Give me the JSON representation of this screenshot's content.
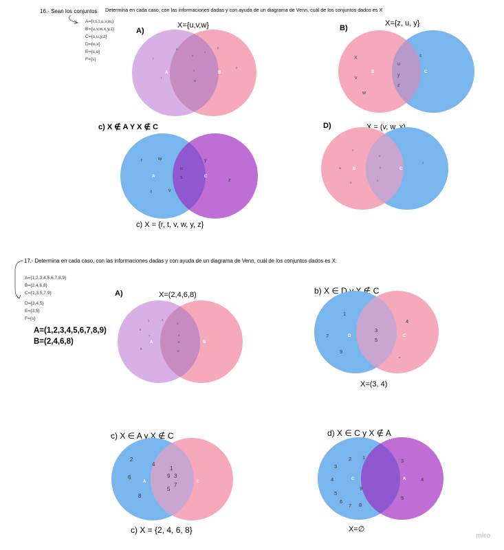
{
  "colors": {
    "purple_light": "#d8b0e6",
    "pink": "#f7a9bc",
    "blue": "#7ab6ee",
    "magenta": "#bf6ed6",
    "overlap_pp": "#c68bc1",
    "overlap_pb": "#b89ac9",
    "overlap_bm": "#8f58cf",
    "overlap_bp": "#c8a6d0"
  },
  "p16": {
    "label": "16.- Sean los conjuntos",
    "instruction": "Determina en cada caso, con las informaciones dadas y con ayuda de un diagrama de Venn, cuál de los conjuntos dados es X",
    "sets": [
      "A={r,s,t,u,v,w,}",
      "B={u,v,w,x,y,z}",
      "C={s,u,y,z}",
      "D={u,v}",
      "E={s,u}",
      "F={s}"
    ],
    "a": {
      "label": "A)",
      "given": "X={u,v,w}",
      "left": "A",
      "right": "B",
      "left_elems": [
        "r",
        "s",
        "t"
      ],
      "mid_elems": [
        "u",
        "v",
        "w"
      ],
      "right_elems": [
        "x",
        "y",
        "z"
      ]
    },
    "b": {
      "label": "B)",
      "given": "X={z, u, y}",
      "left": "B",
      "right": "C",
      "left_elems": [
        "X",
        "v",
        "w"
      ],
      "mid_elems": [
        "u",
        "y",
        "z"
      ],
      "right_elems": [
        "s"
      ]
    },
    "c": {
      "label": "c) X ∉ A  Y  X ∉ C",
      "left": "A",
      "right": "C",
      "left_elems": [
        "r",
        "w",
        "t",
        "v"
      ],
      "mid_elems": [
        "u",
        "s"
      ],
      "right_elems": [
        "y",
        "z"
      ],
      "answer": "c) X = {r, t, v, w, y, z}"
    },
    "d": {
      "label": "D)",
      "given": "X = (v, w, x)",
      "left": "B",
      "right": "C",
      "left_elems": [
        "v",
        "w",
        "x"
      ],
      "mid_elems": [
        "u",
        "y",
        "z"
      ],
      "right_elems": [
        "s"
      ]
    }
  },
  "p17": {
    "instruction": "17.-  Determina en cada caso, con las informaciones dadas y con ayuda de un diagrama de Venn, cuál de los conjuntos dados es X:",
    "sets": [
      "A={1,2,3,4,5,6,7,8,9}",
      "B={2,4,6,8}",
      "C={1,3,5,7,9}",
      "D={3,4,5}",
      "E={3,5}",
      "F={s}"
    ],
    "bold_sets": [
      "A=(1,2,3,4,5,6,7,8,9)",
      "B=(2,4,6,8)"
    ],
    "a": {
      "label": "A)",
      "given": "X=(2,4,6,8)",
      "left": "A",
      "right": "B",
      "left_elems": [
        "1",
        "3",
        "5",
        "7",
        "9"
      ],
      "mid_elems": [
        "2",
        "4",
        "6",
        "8"
      ],
      "right_elems": []
    },
    "b": {
      "label": "b) X ∈ D  y  X ∉ C",
      "left": "D",
      "right": "C",
      "left_elems": [
        "1",
        "7",
        "9"
      ],
      "mid_elems": [
        "3",
        "5"
      ],
      "right_elems": [
        "4",
        "s"
      ],
      "answer": "X=(3, 4)"
    },
    "c": {
      "label": "c) X ∈ A  y  X ∉ C",
      "left": "A",
      "right": "C",
      "left_elems": [
        "2",
        "4",
        "6",
        "8"
      ],
      "mid_elems": [
        "1",
        "9",
        "3",
        "7",
        "5"
      ],
      "right_elems": [],
      "answer": "c) X = {2, 4, 6, 8}"
    },
    "d": {
      "label": "d) X ∈ C  y  X ∉ A",
      "left": "C",
      "right": "A",
      "left_elems": [
        "2",
        "1",
        "3",
        "4",
        "9",
        "5",
        "6",
        "7",
        "8"
      ],
      "mid_elems": [],
      "right_elems": [
        "3",
        "4",
        "5"
      ],
      "answer": "X=∅"
    }
  },
  "watermark": "miro"
}
